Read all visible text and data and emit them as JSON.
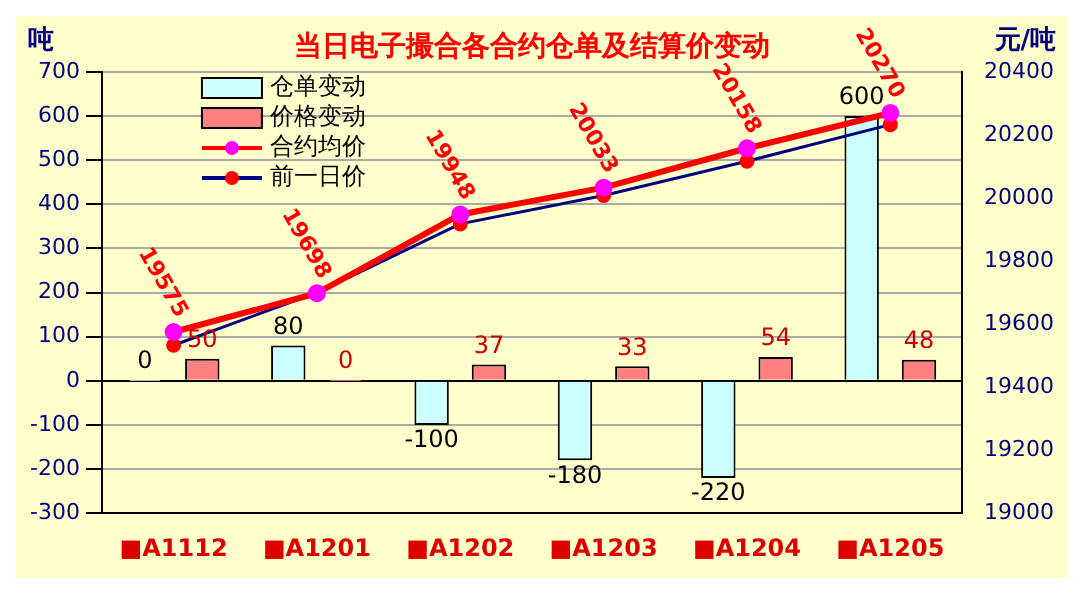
{
  "chart_data": {
    "type": "bar",
    "title": "当日电子撮合各合约仓单及结算价变动",
    "ylabel": "吨",
    "y2label": "元/吨",
    "categories": [
      "■A1112",
      "■A1201",
      "■A1202",
      "■A1203",
      "■A1204",
      "■A1205"
    ],
    "series": [
      {
        "name": "仓单变动",
        "color": "#ccffff",
        "values": [
          0,
          80,
          -100,
          -180,
          -220,
          600
        ],
        "value_labels": [
          "0",
          "80",
          "-100",
          "-180",
          "-220",
          "600"
        ]
      },
      {
        "name": "价格变动",
        "color": "#ff8080",
        "values": [
          50,
          0,
          37,
          33,
          54,
          48
        ],
        "value_labels": [
          "50",
          "0",
          "37",
          "33",
          "54",
          "48"
        ]
      },
      {
        "name": "合约均价",
        "type": "line",
        "axis": "y2",
        "color": "#ff0000",
        "colors": [
          "#ff00ff",
          "#ff00ff",
          "#ff00ff",
          "#ff00ff",
          "#ff00ff",
          "#ff00ff"
        ],
        "values": [
          19575,
          19698,
          19948,
          20033,
          20158,
          20270
        ],
        "value_labels": [
          "19575",
          "19698",
          "19948",
          "20033",
          "20158",
          "20270"
        ]
      },
      {
        "name": "前一日价",
        "type": "line",
        "axis": "y2",
        "color": "#000080",
        "colors": [
          "#ff0000",
          "#ff0000",
          "#ff0000",
          "#ff0000",
          "#ff0000",
          "#ff0000"
        ],
        "values": [
          19533,
          19700,
          19918,
          20008,
          20117,
          20233
        ]
      }
    ],
    "ylim": [
      -300,
      700
    ],
    "yticks": [
      -300,
      -200,
      -100,
      0,
      100,
      200,
      300,
      400,
      500,
      600,
      700
    ],
    "y2lim": [
      19000,
      20400
    ],
    "y2ticks": [
      19000,
      19200,
      19400,
      19600,
      19800,
      20000,
      20200,
      20400
    ],
    "grid": "y",
    "legend": "top left",
    "marker": "circle"
  }
}
